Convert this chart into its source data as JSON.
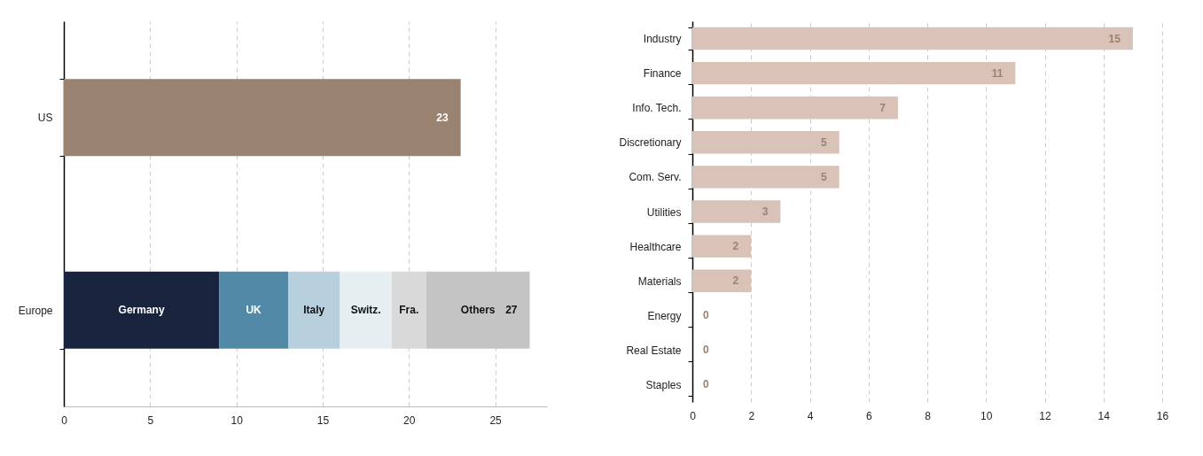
{
  "chart_data": [
    {
      "type": "bar",
      "orientation": "horizontal",
      "stacked": true,
      "categories": [
        "US",
        "Europe"
      ],
      "series": [
        {
          "color": "#9a8270",
          "values": [
            23,
            null
          ],
          "value_labels": [
            "23",
            null
          ]
        },
        {
          "name": "Germany",
          "color": "#18233d",
          "values": [
            null,
            9
          ]
        },
        {
          "name": "UK",
          "color": "#5289a6",
          "values": [
            null,
            4
          ]
        },
        {
          "name": "Italy",
          "color": "#b8d0dd",
          "values": [
            null,
            3
          ]
        },
        {
          "name": "Switz.",
          "color": "#e6eef2",
          "values": [
            null,
            3
          ]
        },
        {
          "name": "Fra.",
          "color": "#d9d9d9",
          "values": [
            null,
            2
          ]
        },
        {
          "name": "Others",
          "color": "#c4c4c4",
          "values": [
            null,
            6
          ]
        }
      ],
      "totals": [
        null,
        "27"
      ],
      "xlim": [
        0,
        28
      ],
      "xticks": [
        0,
        5,
        10,
        15,
        20,
        25
      ],
      "grid": "x",
      "legend": false
    },
    {
      "type": "bar",
      "orientation": "horizontal",
      "categories": [
        "Industry",
        "Finance",
        "Info. Tech.",
        "Discretionary",
        "Com. Serv.",
        "Utilities",
        "Healthcare",
        "Materials",
        "Energy",
        "Real Estate",
        "Staples"
      ],
      "values": [
        15,
        11,
        7,
        5,
        5,
        3,
        2,
        2,
        0,
        0,
        0
      ],
      "color": "#d9c2b7",
      "data_labels": true,
      "xlim": [
        0,
        16
      ],
      "xticks": [
        0,
        2,
        4,
        6,
        8,
        10,
        12,
        14,
        16
      ],
      "grid": "x"
    }
  ]
}
